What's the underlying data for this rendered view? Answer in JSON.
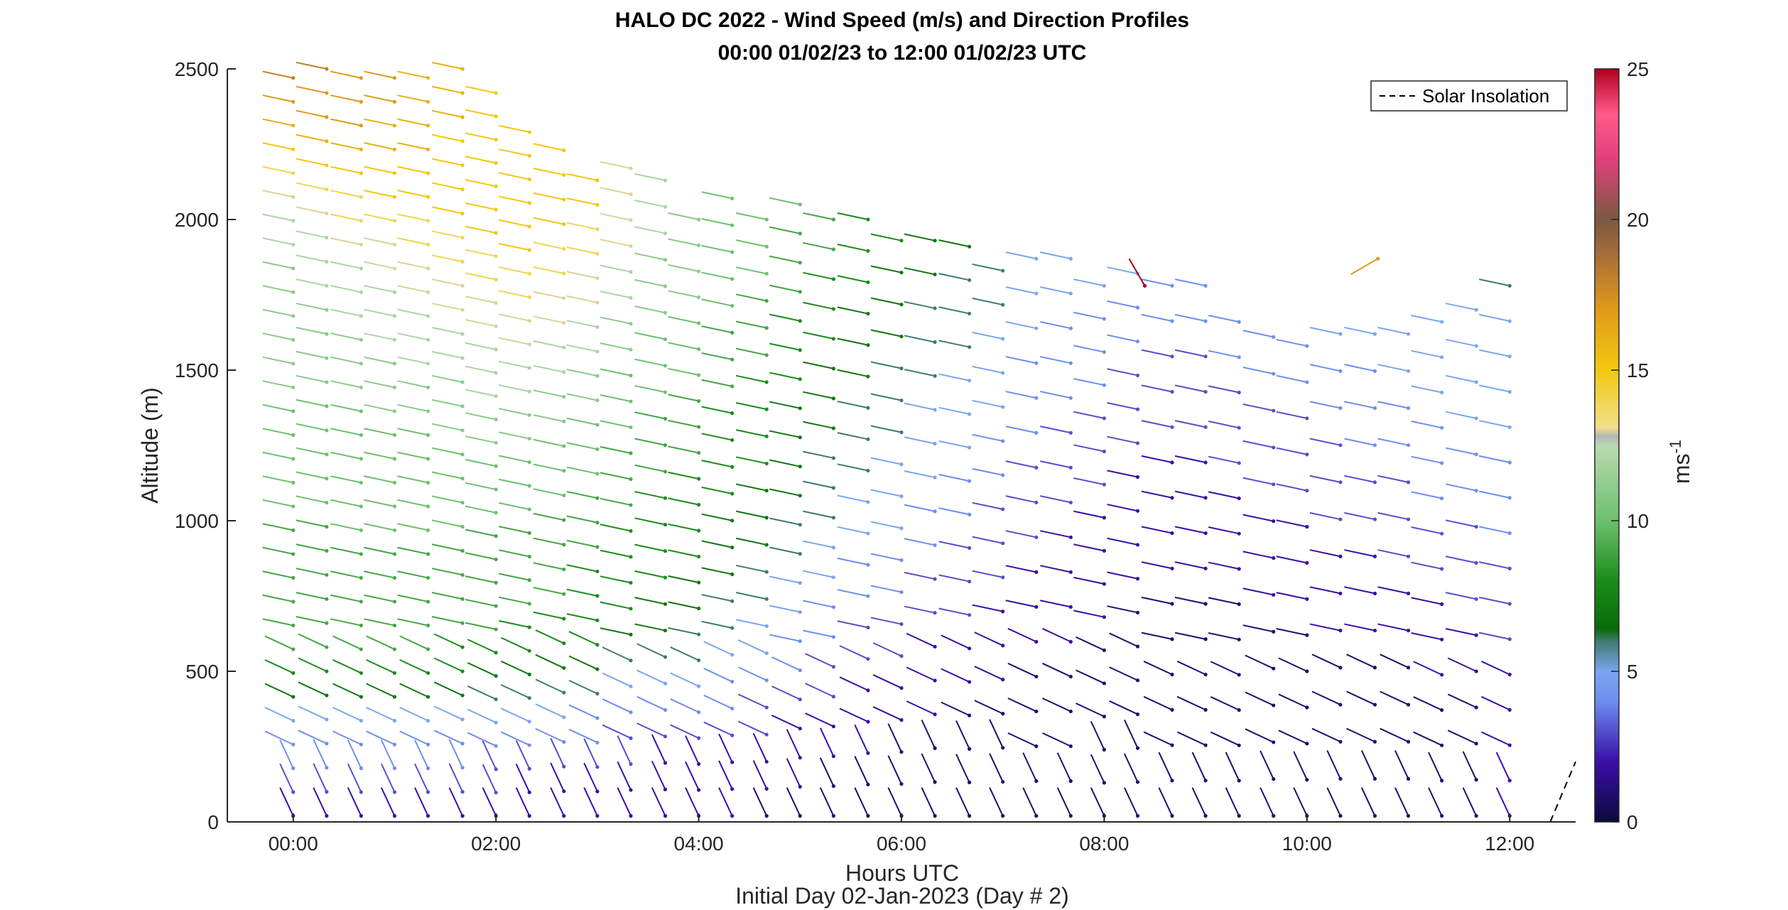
{
  "chart_data": {
    "type": "scatter",
    "subtype": "wind-barb profile",
    "title_line1": "HALO DC 2022 - Wind Speed (m/s) and Direction Profiles",
    "title_line2": "00:00 01/02/23 to 12:00 01/02/23  UTC",
    "xlabel": "Hours UTC",
    "xlabel2": "Initial Day 02-Jan-2023 (Day # 2)",
    "ylabel": "Altitude (m)",
    "x_unit": "hours",
    "xlim": [
      -0.65,
      12.65
    ],
    "ylim": [
      0,
      2500
    ],
    "x_ticks": [
      0,
      2,
      4,
      6,
      8,
      10,
      12
    ],
    "x_tick_labels": [
      "00:00",
      "02:00",
      "04:00",
      "06:00",
      "08:00",
      "10:00",
      "12:00"
    ],
    "y_ticks": [
      0,
      500,
      1000,
      1500,
      2000,
      2500
    ],
    "y_tick_labels": [
      "0",
      "500",
      "1000",
      "1500",
      "2000",
      "2500"
    ],
    "colorbar": {
      "label": "ms",
      "label_exponent": "-1",
      "range": [
        0,
        25
      ],
      "ticks": [
        0,
        5,
        10,
        15,
        20,
        25
      ],
      "tick_labels": [
        "0",
        "5",
        "10",
        "15",
        "20",
        "25"
      ],
      "color_stops": [
        {
          "v": 0,
          "c": "#0b0a3c"
        },
        {
          "v": 2,
          "c": "#3a0fa6"
        },
        {
          "v": 4,
          "c": "#6d8ef0"
        },
        {
          "v": 5,
          "c": "#7aa6f0"
        },
        {
          "v": 6,
          "c": "#3f7a6e"
        },
        {
          "v": 6.4,
          "c": "#0a6a0a"
        },
        {
          "v": 8,
          "c": "#1a8c1a"
        },
        {
          "v": 10,
          "c": "#6dc06d"
        },
        {
          "v": 12.5,
          "c": "#b9dab0"
        },
        {
          "v": 12.8,
          "c": "#b5b5b5"
        },
        {
          "v": 13.1,
          "c": "#f0e08a"
        },
        {
          "v": 15,
          "c": "#f2c80f"
        },
        {
          "v": 17,
          "c": "#e09a1a"
        },
        {
          "v": 19,
          "c": "#a06a3a"
        },
        {
          "v": 20,
          "c": "#7a5a42"
        },
        {
          "v": 22,
          "c": "#e0407a"
        },
        {
          "v": 23.5,
          "c": "#ff5a8a"
        },
        {
          "v": 25,
          "c": "#b0001e"
        }
      ]
    },
    "legend": {
      "placement": "top-right",
      "entries": [
        "Solar Insolation"
      ]
    },
    "solar_insolation": {
      "x": [
        12.4,
        12.65
      ],
      "y": [
        0,
        200
      ]
    },
    "profiles": [
      {
        "t": 0.0,
        "top": 2470,
        "spd": [
          2,
          3,
          4,
          4,
          5,
          7,
          8,
          9,
          9,
          9,
          9,
          9,
          9,
          10,
          10,
          10,
          10,
          10,
          11,
          11,
          11,
          11,
          11,
          11,
          12,
          12,
          13,
          14,
          15,
          16,
          17,
          18
        ]
      },
      {
        "t": 0.33,
        "top": 2500,
        "spd": [
          2,
          3,
          4,
          4,
          5,
          7,
          8,
          9,
          9,
          9,
          9,
          9,
          9,
          10,
          10,
          10,
          10,
          10,
          11,
          11,
          11,
          11,
          12,
          12,
          12,
          13,
          14,
          15,
          16,
          17,
          17,
          18
        ]
      },
      {
        "t": 0.67,
        "top": 2470,
        "spd": [
          2,
          3,
          4,
          4,
          5,
          7,
          8,
          9,
          9,
          9,
          9,
          9,
          10,
          10,
          10,
          10,
          10,
          10,
          11,
          11,
          11,
          12,
          12,
          12,
          13,
          14,
          14,
          15,
          16,
          17,
          17,
          17
        ]
      },
      {
        "t": 1.0,
        "top": 2470,
        "spd": [
          2,
          3,
          4,
          4,
          5,
          7,
          8,
          9,
          9,
          9,
          9,
          9,
          10,
          10,
          10,
          10,
          10,
          11,
          11,
          11,
          12,
          12,
          12,
          13,
          13,
          14,
          15,
          15,
          16,
          16,
          17,
          17
        ]
      },
      {
        "t": 1.33,
        "top": 2470,
        "spd": [
          2,
          3,
          4,
          4,
          5,
          7,
          8,
          9,
          9,
          9,
          9,
          9,
          10,
          10,
          10,
          10,
          10,
          11,
          11,
          12,
          12,
          12,
          13,
          13,
          14,
          14,
          15,
          15,
          16,
          16,
          16,
          16
        ]
      },
      {
        "t": 1.67,
        "top": 2500,
        "spd": [
          2,
          3,
          4,
          4,
          5,
          7,
          8,
          8,
          9,
          9,
          9,
          9,
          10,
          10,
          10,
          10,
          11,
          11,
          11,
          12,
          12,
          13,
          13,
          14,
          14,
          15,
          15,
          15,
          15,
          16,
          16,
          16
        ]
      },
      {
        "t": 2.0,
        "top": 2420,
        "spd": [
          2,
          3,
          3,
          4,
          5,
          6,
          7,
          8,
          9,
          9,
          9,
          9,
          9,
          10,
          10,
          10,
          11,
          11,
          12,
          12,
          12,
          13,
          13,
          14,
          14,
          15,
          15,
          15,
          15,
          15,
          15,
          15
        ]
      },
      {
        "t": 2.33,
        "top": 2290,
        "spd": [
          2,
          2,
          3,
          4,
          5,
          6,
          7,
          8,
          8,
          9,
          9,
          9,
          9,
          10,
          10,
          10,
          11,
          11,
          12,
          12,
          13,
          13,
          14,
          14,
          15,
          15,
          15,
          15,
          15,
          15
        ]
      },
      {
        "t": 2.67,
        "top": 2230,
        "spd": [
          2,
          2,
          3,
          4,
          5,
          6,
          7,
          8,
          8,
          9,
          9,
          9,
          9,
          10,
          10,
          10,
          11,
          11,
          12,
          12,
          13,
          13,
          14,
          14,
          15,
          15,
          15,
          15
        ]
      },
      {
        "t": 3.0,
        "top": 2130,
        "spd": [
          2,
          2,
          3,
          4,
          4,
          6,
          7,
          8,
          8,
          8,
          8,
          9,
          9,
          9,
          10,
          10,
          10,
          11,
          11,
          12,
          12,
          13,
          13,
          14,
          14,
          15,
          15
        ]
      },
      {
        "t": 3.33,
        "top": 2170,
        "spd": [
          2,
          2,
          3,
          3,
          4,
          5,
          6,
          7,
          8,
          8,
          8,
          8,
          9,
          9,
          9,
          10,
          10,
          10,
          11,
          11,
          12,
          12,
          13,
          13,
          13,
          13
        ]
      },
      {
        "t": 3.67,
        "top": 2130,
        "spd": [
          2,
          2,
          2,
          3,
          4,
          5,
          6,
          7,
          7,
          8,
          8,
          8,
          8,
          9,
          9,
          9,
          10,
          10,
          10,
          11,
          11,
          11,
          12,
          12,
          12
        ]
      },
      {
        "t": 4.0,
        "top": 2000,
        "spd": [
          2,
          2,
          2,
          3,
          4,
          5,
          6,
          6,
          7,
          7,
          8,
          8,
          8,
          8,
          9,
          9,
          9,
          10,
          10,
          10,
          11,
          11,
          11,
          11
        ]
      },
      {
        "t": 4.33,
        "top": 2070,
        "spd": [
          2,
          2,
          2,
          3,
          4,
          4,
          5,
          6,
          6,
          7,
          7,
          7,
          8,
          8,
          8,
          8,
          9,
          9,
          9,
          10,
          10,
          10,
          10,
          10
        ]
      },
      {
        "t": 4.67,
        "top": 2000,
        "spd": [
          1,
          2,
          2,
          3,
          3,
          4,
          5,
          5,
          6,
          6,
          7,
          7,
          7,
          8,
          8,
          8,
          8,
          9,
          9,
          9,
          10,
          10,
          10
        ]
      },
      {
        "t": 5.0,
        "top": 2050,
        "spd": [
          1,
          2,
          2,
          2,
          3,
          4,
          4,
          5,
          5,
          6,
          6,
          7,
          7,
          7,
          7,
          8,
          8,
          8,
          9,
          9,
          9,
          10
        ]
      },
      {
        "t": 5.33,
        "top": 2000,
        "spd": [
          1,
          1,
          2,
          2,
          3,
          3,
          4,
          4,
          5,
          5,
          6,
          6,
          6,
          7,
          7,
          7,
          8,
          8,
          8,
          9,
          9
        ]
      },
      {
        "t": 5.67,
        "top": 2000,
        "spd": [
          1,
          1,
          2,
          2,
          2,
          3,
          3,
          4,
          4,
          5,
          5,
          6,
          6,
          6,
          7,
          7,
          7,
          8,
          8,
          8
        ]
      },
      {
        "t": 6.0,
        "top": 1930,
        "spd": [
          1,
          1,
          1,
          2,
          2,
          3,
          3,
          4,
          4,
          5,
          5,
          5,
          6,
          6,
          6,
          7,
          7,
          7,
          8
        ]
      },
      {
        "t": 6.33,
        "top": 1930,
        "spd": [
          1,
          1,
          1,
          2,
          2,
          2,
          3,
          3,
          4,
          4,
          5,
          5,
          5,
          6,
          6,
          6,
          7,
          7
        ]
      },
      {
        "t": 6.67,
        "top": 1910,
        "spd": [
          1,
          1,
          1,
          1,
          2,
          2,
          3,
          3,
          3,
          4,
          4,
          5,
          5,
          5,
          6,
          6,
          6,
          7
        ]
      },
      {
        "t": 7.0,
        "top": 1830,
        "spd": [
          1,
          1,
          1,
          1,
          2,
          2,
          2,
          3,
          3,
          3,
          4,
          4,
          5,
          5,
          5,
          6,
          6
        ]
      },
      {
        "t": 7.33,
        "top": 1870,
        "spd": [
          1,
          1,
          1,
          1,
          1,
          2,
          2,
          2,
          3,
          3,
          3,
          4,
          4,
          4,
          5,
          5,
          5
        ]
      },
      {
        "t": 7.67,
        "top": 1870,
        "spd": [
          1,
          1,
          1,
          1,
          1,
          2,
          2,
          2,
          2,
          3,
          3,
          3,
          4,
          4,
          4,
          5,
          5
        ]
      },
      {
        "t": 8.0,
        "top": 1780,
        "spd": [
          1,
          1,
          1,
          1,
          1,
          1,
          2,
          2,
          2,
          2,
          3,
          3,
          3,
          4,
          4,
          4,
          5
        ]
      },
      {
        "t": 8.33,
        "top": 1820,
        "spd": [
          1,
          1,
          1,
          1,
          1,
          1,
          1,
          2,
          2,
          2,
          2,
          3,
          3,
          3,
          4,
          4,
          5
        ]
      },
      {
        "t": 8.67,
        "top": 1780,
        "spd": [
          1,
          1,
          1,
          1,
          1,
          1,
          1,
          2,
          2,
          2,
          2,
          3,
          3,
          3,
          4,
          4
        ]
      },
      {
        "t": 9.0,
        "top": 1780,
        "spd": [
          1,
          1,
          1,
          1,
          1,
          1,
          1,
          2,
          2,
          2,
          2,
          3,
          3,
          3,
          4,
          4
        ]
      },
      {
        "t": 9.33,
        "top": 1660,
        "spd": [
          1,
          1,
          1,
          1,
          1,
          1,
          1,
          2,
          2,
          2,
          3,
          3,
          3,
          4,
          4
        ]
      },
      {
        "t": 9.67,
        "top": 1610,
        "spd": [
          1,
          1,
          1,
          1,
          1,
          1,
          2,
          2,
          2,
          3,
          3,
          3,
          4,
          4
        ]
      },
      {
        "t": 10.0,
        "top": 1580,
        "spd": [
          1,
          1,
          1,
          1,
          1,
          1,
          2,
          2,
          2,
          3,
          3,
          3,
          4,
          4
        ]
      },
      {
        "t": 10.33,
        "top": 1620,
        "spd": [
          1,
          1,
          1,
          1,
          1,
          2,
          2,
          2,
          3,
          3,
          3,
          4,
          4,
          5
        ]
      },
      {
        "t": 10.67,
        "top": 1620,
        "spd": [
          1,
          1,
          1,
          1,
          1,
          2,
          2,
          2,
          3,
          3,
          4,
          4,
          4,
          5
        ]
      },
      {
        "t": 11.0,
        "top": 1620,
        "spd": [
          1,
          1,
          1,
          1,
          1,
          2,
          2,
          3,
          3,
          3,
          4,
          4,
          5,
          5
        ]
      },
      {
        "t": 11.33,
        "top": 1660,
        "spd": [
          1,
          1,
          1,
          1,
          2,
          2,
          2,
          3,
          3,
          4,
          4,
          4,
          5,
          5,
          5
        ]
      },
      {
        "t": 11.67,
        "top": 1700,
        "spd": [
          1,
          1,
          1,
          1,
          2,
          2,
          3,
          3,
          3,
          4,
          4,
          5,
          5,
          5,
          5
        ]
      },
      {
        "t": 12.0,
        "top": 1780,
        "spd": [
          2,
          2,
          2,
          2,
          2,
          3,
          3,
          3,
          4,
          4,
          4,
          5,
          5,
          5,
          5,
          6
        ]
      }
    ],
    "outliers": [
      {
        "t": 8.4,
        "z": 1780,
        "spd": 25
      },
      {
        "t": 10.7,
        "z": 1870,
        "spd": 17
      }
    ]
  }
}
